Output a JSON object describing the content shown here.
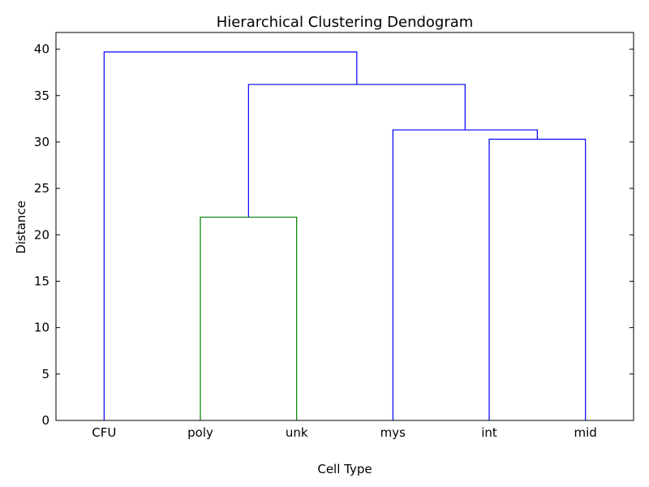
{
  "chart_data": {
    "type": "dendrogram",
    "title": "Hierarchical Clustering Dendogram",
    "xlabel": "Cell Type",
    "ylabel": "Distance",
    "ylim": [
      0,
      41.8
    ],
    "yticks": [
      0,
      5,
      10,
      15,
      20,
      25,
      30,
      35,
      40
    ],
    "leaves": [
      "CFU",
      "poly",
      "unk",
      "mys",
      "int",
      "mid"
    ],
    "grid": false,
    "merges": [
      {
        "left": "poly",
        "right": "unk",
        "distance": 21.9,
        "color": "#008000"
      },
      {
        "left": "int",
        "right": "mid",
        "distance": 30.3,
        "color": "#0000ff"
      },
      {
        "left": "mys",
        "right": "int+mid",
        "distance": 31.3,
        "color": "#0000ff"
      },
      {
        "left": "poly+unk",
        "right": "mys+int+mid",
        "distance": 36.2,
        "color": "#0000ff"
      },
      {
        "left": "CFU",
        "right": "poly+unk+mys+int+mid",
        "distance": 39.7,
        "color": "#0000ff"
      }
    ],
    "colors": {
      "cluster": "#008000",
      "link": "#0000ff",
      "axis": "#000000"
    }
  }
}
